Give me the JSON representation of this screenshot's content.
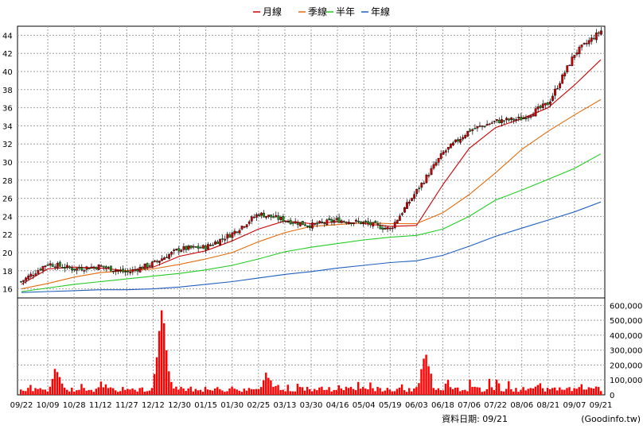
{
  "chart_data": {
    "type": "candlestick",
    "legend": [
      {
        "name": "月線",
        "color": "#cc0000"
      },
      {
        "name": "季線",
        "color": "#e26b0a"
      },
      {
        "name": "半年",
        "color": "#22cc22"
      },
      {
        "name": "年線",
        "color": "#1f5fbf"
      }
    ],
    "price_axis": {
      "ylim": [
        15,
        45
      ],
      "ticks": [
        16,
        18,
        20,
        22,
        24,
        26,
        28,
        30,
        32,
        34,
        36,
        38,
        40,
        42,
        44
      ]
    },
    "volume_axis": {
      "ylim": [
        0,
        650000
      ],
      "ticks": [
        0,
        100000,
        200000,
        300000,
        400000,
        500000,
        600000
      ],
      "tick_labels": [
        "0",
        "100,000",
        "200,000",
        "300,000",
        "400,000",
        "500,000",
        "600,000"
      ]
    },
    "x_tick_labels": [
      "09/22",
      "10/09",
      "10/28",
      "11/12",
      "11/27",
      "12/12",
      "12/30",
      "01/15",
      "01/30",
      "02/25",
      "03/13",
      "03/30",
      "04/16",
      "05/04",
      "05/19",
      "06/03",
      "06/18",
      "07/06",
      "07/22",
      "08/06",
      "08/21",
      "09/07",
      "09/21"
    ],
    "close_anchors": [
      {
        "date": "09/22",
        "close": 16.8
      },
      {
        "date": "10/09",
        "close": 18.8
      },
      {
        "date": "10/28",
        "close": 18.2
      },
      {
        "date": "11/12",
        "close": 18.5
      },
      {
        "date": "11/27",
        "close": 17.8
      },
      {
        "date": "12/12",
        "close": 18.8
      },
      {
        "date": "12/30",
        "close": 20.4
      },
      {
        "date": "01/15",
        "close": 20.6
      },
      {
        "date": "01/30",
        "close": 22.1
      },
      {
        "date": "02/25",
        "close": 24.3
      },
      {
        "date": "03/13",
        "close": 23.6
      },
      {
        "date": "03/30",
        "close": 23.0
      },
      {
        "date": "04/16",
        "close": 23.6
      },
      {
        "date": "05/04",
        "close": 23.3
      },
      {
        "date": "05/19",
        "close": 22.6
      },
      {
        "date": "06/03",
        "close": 26.8
      },
      {
        "date": "06/18",
        "close": 31.0
      },
      {
        "date": "07/06",
        "close": 33.5
      },
      {
        "date": "07/22",
        "close": 34.5
      },
      {
        "date": "08/06",
        "close": 34.8
      },
      {
        "date": "08/21",
        "close": 36.5
      },
      {
        "date": "09/07",
        "close": 42.0
      },
      {
        "date": "09/21",
        "close": 44.5
      }
    ],
    "ma_month": [
      16.5,
      18.2,
      18.4,
      18.3,
      18.0,
      18.4,
      19.6,
      20.2,
      21.3,
      22.6,
      23.5,
      23.2,
      23.4,
      23.2,
      22.9,
      23.0,
      27.5,
      31.5,
      33.8,
      34.8,
      36.0,
      38.5,
      41.3
    ],
    "ma_quarter": [
      16.0,
      16.6,
      17.3,
      17.8,
      18.0,
      18.2,
      18.7,
      19.3,
      20.0,
      21.2,
      22.2,
      22.9,
      23.1,
      23.3,
      23.2,
      23.2,
      24.4,
      26.4,
      28.8,
      31.4,
      33.4,
      35.2,
      36.9
    ],
    "ma_half": [
      15.7,
      16.1,
      16.5,
      16.8,
      17.1,
      17.4,
      17.7,
      18.1,
      18.6,
      19.3,
      20.1,
      20.6,
      21.0,
      21.4,
      21.7,
      21.9,
      22.6,
      24.0,
      25.8,
      26.9,
      28.1,
      29.3,
      30.9
    ],
    "ma_year": [
      15.6,
      15.7,
      15.8,
      15.9,
      15.9,
      16.0,
      16.2,
      16.5,
      16.8,
      17.2,
      17.6,
      17.9,
      18.3,
      18.6,
      18.9,
      19.1,
      19.7,
      20.7,
      21.8,
      22.7,
      23.6,
      24.5,
      25.6
    ],
    "volume_peaks": [
      {
        "date": "12/12",
        "volume": 610000
      },
      {
        "date": "06/03",
        "volume": 300000
      },
      {
        "date": "02/25",
        "volume": 150000
      },
      {
        "date": "10/09",
        "volume": 180000
      },
      {
        "date": "09/21",
        "volume": 140000
      }
    ],
    "footer": "資料日期: 09/21",
    "source": "(Goodinfo.tw)"
  }
}
